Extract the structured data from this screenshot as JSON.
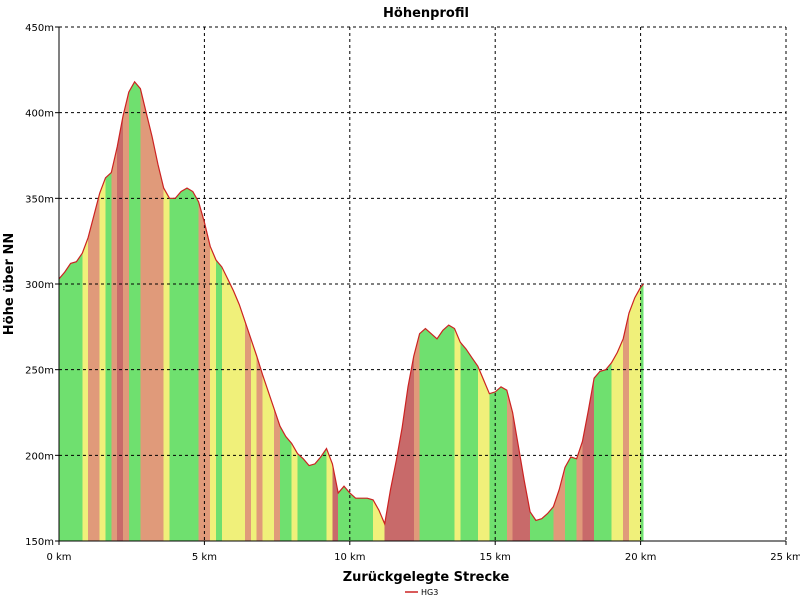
{
  "chart_data": {
    "type": "area",
    "title": "Höhenprofil",
    "xlabel": "Zurückgelegte Strecke",
    "ylabel": "Höhe über NN",
    "xlim": [
      0,
      25
    ],
    "ylim": [
      150,
      450
    ],
    "x_ticks": [
      0,
      5,
      10,
      15,
      20,
      25
    ],
    "x_tick_labels": [
      "0 km",
      "5 km",
      "10 km",
      "15 km",
      "20 km",
      "25 km"
    ],
    "y_ticks": [
      150,
      200,
      250,
      300,
      350,
      400,
      450
    ],
    "y_tick_labels": [
      "150m",
      "200m",
      "250m",
      "300m",
      "350m",
      "400m",
      "450m"
    ],
    "grid": true,
    "legend": {
      "placement": "bottom-center",
      "entries": [
        "HG3"
      ]
    },
    "colors": {
      "line": "#cc2222",
      "flat": "#6fe06f",
      "moderate": "#f0f07a",
      "steep": "#c86a6a",
      "grid": "#000000"
    },
    "series": [
      {
        "name": "HG3",
        "x": [
          0,
          0.2,
          0.4,
          0.6,
          0.8,
          1.0,
          1.2,
          1.4,
          1.6,
          1.8,
          2.0,
          2.2,
          2.4,
          2.6,
          2.8,
          3.0,
          3.2,
          3.4,
          3.6,
          3.8,
          4.0,
          4.2,
          4.4,
          4.6,
          4.8,
          5.0,
          5.2,
          5.4,
          5.6,
          5.8,
          6.0,
          6.2,
          6.4,
          6.6,
          6.8,
          7.0,
          7.2,
          7.4,
          7.6,
          7.8,
          8.0,
          8.2,
          8.4,
          8.6,
          8.8,
          9.0,
          9.2,
          9.4,
          9.6,
          9.8,
          10.0,
          10.2,
          10.4,
          10.6,
          10.8,
          11.0,
          11.2,
          11.4,
          11.6,
          11.8,
          12.0,
          12.2,
          12.4,
          12.6,
          12.8,
          13.0,
          13.2,
          13.4,
          13.6,
          13.8,
          14.0,
          14.2,
          14.4,
          14.6,
          14.8,
          15.0,
          15.2,
          15.4,
          15.6,
          15.8,
          16.0,
          16.2,
          16.4,
          16.6,
          16.8,
          17.0,
          17.2,
          17.4,
          17.6,
          17.8,
          18.0,
          18.2,
          18.4,
          18.6,
          18.8,
          19.0,
          19.2,
          19.4,
          19.6,
          19.8,
          20.0,
          20.1
        ],
        "y": [
          303,
          307,
          312,
          313,
          318,
          327,
          340,
          353,
          362,
          365,
          380,
          398,
          412,
          418,
          414,
          400,
          386,
          370,
          356,
          350,
          350,
          354,
          356,
          354,
          348,
          336,
          322,
          314,
          310,
          303,
          296,
          288,
          278,
          268,
          258,
          247,
          237,
          227,
          217,
          211,
          207,
          201,
          198,
          194,
          195,
          199,
          204,
          195,
          178,
          182,
          178,
          175,
          175,
          175,
          174,
          168,
          160,
          180,
          197,
          216,
          240,
          258,
          271,
          274,
          271,
          268,
          273,
          276,
          274,
          266,
          262,
          257,
          252,
          244,
          236,
          237,
          240,
          238,
          225,
          205,
          185,
          167,
          162,
          163,
          166,
          170,
          180,
          193,
          199,
          198,
          208,
          226,
          245,
          249,
          250,
          254,
          260,
          268,
          283,
          292,
          298,
          300
        ]
      }
    ]
  }
}
